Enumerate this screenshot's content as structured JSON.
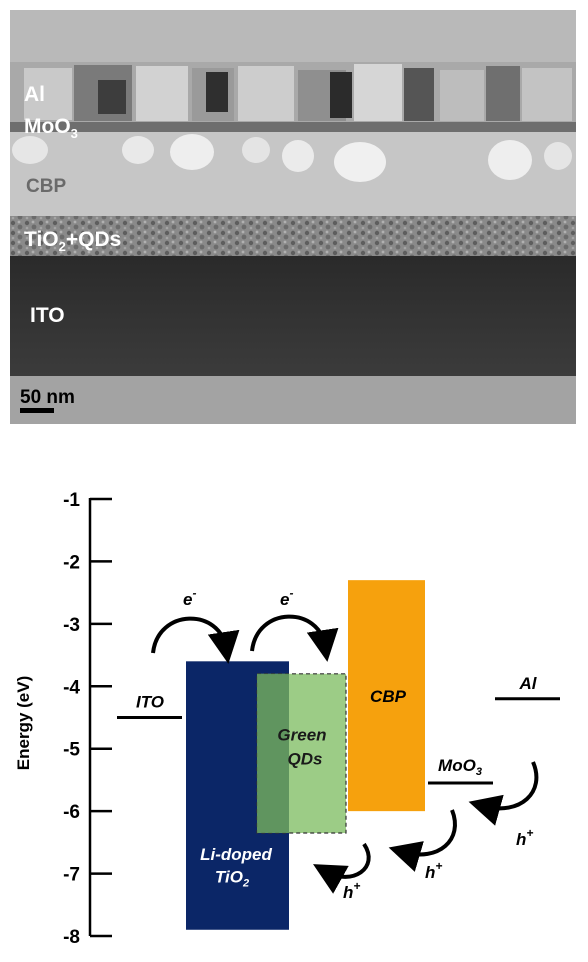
{
  "micrograph": {
    "layers": {
      "al": "Al",
      "moo3_base": "MoO",
      "moo3_sub": "3",
      "cbp": "CBP",
      "tio2_base": "TiO",
      "tio2_sub": "2",
      "tio2_rest": "+QDs",
      "ito": "ITO"
    },
    "scale_bar": "50 nm"
  },
  "chart_data": {
    "type": "diagram",
    "ylabel": "Energy (eV)",
    "ylim": [
      -8,
      -1
    ],
    "yticks": [
      -1,
      -2,
      -3,
      -4,
      -5,
      -6,
      -7,
      -8
    ],
    "levels": [
      {
        "id": "ito",
        "label": "ITO",
        "energy": -4.5
      },
      {
        "id": "moo3",
        "label_base": "MoO",
        "label_sub": "3",
        "energy": -5.55
      },
      {
        "id": "al",
        "label": "Al",
        "energy": -4.2
      }
    ],
    "bands": [
      {
        "id": "tio2",
        "label_line1": "Li-doped",
        "label_line2_base": "TiO",
        "label_line2_sub": "2",
        "top": -3.6,
        "bottom": -7.9,
        "color": "#0b2667"
      },
      {
        "id": "qds",
        "label_line1": "Green",
        "label_line2": "QDs",
        "top": -3.8,
        "bottom": -6.35,
        "color": "#9ccc86"
      },
      {
        "id": "cbp",
        "label": "CBP",
        "top": -2.3,
        "bottom": -6.0,
        "color": "#f6a10d"
      }
    ],
    "carriers": {
      "electron": {
        "base": "e",
        "sup": "-"
      },
      "hole": {
        "base": "h",
        "sup": "+"
      }
    },
    "colors": {
      "tio2": "#0b2667",
      "qds": "#9ccc86",
      "qds_overlap": "#5a8f5b",
      "cbp": "#f6a10d"
    }
  }
}
